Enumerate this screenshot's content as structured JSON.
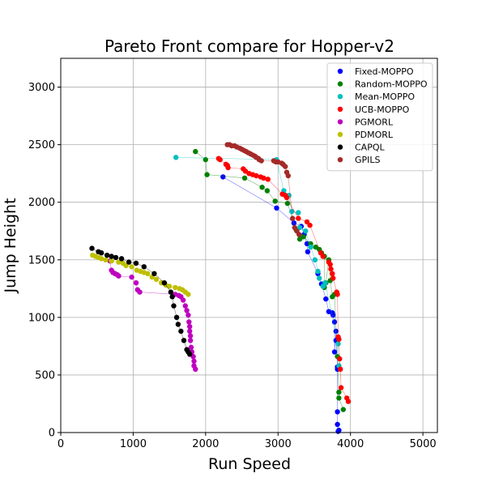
{
  "chart_data": {
    "type": "scatter",
    "title": "Pareto Front compare for Hopper-v2",
    "xlabel": "Run Speed",
    "ylabel": "Jump Height",
    "xlim": [
      0,
      5200
    ],
    "ylim": [
      0,
      3250
    ],
    "xticks": [
      0,
      1000,
      2000,
      3000,
      4000,
      5000
    ],
    "yticks": [
      0,
      500,
      1000,
      1500,
      2000,
      2500,
      3000
    ],
    "grid": true,
    "legend_position": "top-right",
    "series": [
      {
        "name": "Fixed-MOPPO",
        "color": "#0000ff",
        "points": [
          [
            2240,
            2220
          ],
          [
            2980,
            1950
          ],
          [
            3220,
            1820
          ],
          [
            3320,
            1790
          ],
          [
            3360,
            1720
          ],
          [
            3400,
            1640
          ],
          [
            3410,
            1570
          ],
          [
            3550,
            1380
          ],
          [
            3600,
            1290
          ],
          [
            3660,
            1160
          ],
          [
            3700,
            1050
          ],
          [
            3750,
            1040
          ],
          [
            3760,
            1020
          ],
          [
            3780,
            960
          ],
          [
            3800,
            880
          ],
          [
            3800,
            800
          ],
          [
            3780,
            700
          ],
          [
            3820,
            570
          ],
          [
            3820,
            550
          ],
          [
            3820,
            180
          ],
          [
            3820,
            70
          ],
          [
            3840,
            20
          ],
          [
            3830,
            10
          ]
        ]
      },
      {
        "name": "Random-MOPPO",
        "color": "#008000",
        "points": [
          [
            1860,
            2440
          ],
          [
            2000,
            2370
          ],
          [
            2020,
            2240
          ],
          [
            2540,
            2210
          ],
          [
            2780,
            2130
          ],
          [
            2850,
            2100
          ],
          [
            2960,
            2010
          ],
          [
            3130,
            1990
          ],
          [
            3250,
            1760
          ],
          [
            3300,
            1680
          ],
          [
            3350,
            1700
          ],
          [
            3450,
            1640
          ],
          [
            3520,
            1610
          ],
          [
            3570,
            1590
          ],
          [
            3600,
            1560
          ],
          [
            3640,
            1530
          ],
          [
            3700,
            1500
          ],
          [
            3720,
            1320
          ],
          [
            3660,
            1300
          ],
          [
            3640,
            1260
          ],
          [
            3780,
            1200
          ],
          [
            3750,
            1180
          ],
          [
            3820,
            660
          ],
          [
            3840,
            350
          ],
          [
            3840,
            300
          ],
          [
            3900,
            200
          ]
        ]
      },
      {
        "name": "Mean-MOPPO",
        "color": "#00bfbf",
        "points": [
          [
            1590,
            2390
          ],
          [
            2980,
            2370
          ],
          [
            3080,
            2100
          ],
          [
            3150,
            2060
          ],
          [
            3190,
            1920
          ],
          [
            3280,
            1910
          ],
          [
            3300,
            1780
          ],
          [
            3380,
            1750
          ],
          [
            3450,
            1610
          ],
          [
            3510,
            1500
          ],
          [
            3550,
            1400
          ],
          [
            3570,
            1340
          ],
          [
            3620,
            1270
          ],
          [
            3650,
            1300
          ],
          [
            3830,
            770
          ],
          [
            3840,
            580
          ]
        ]
      },
      {
        "name": "UCB-MOPPO",
        "color": "#ff0000",
        "points": [
          [
            2180,
            2380
          ],
          [
            2200,
            2370
          ],
          [
            2280,
            2330
          ],
          [
            2300,
            2320
          ],
          [
            2310,
            2300
          ],
          [
            2520,
            2290
          ],
          [
            2550,
            2270
          ],
          [
            2600,
            2250
          ],
          [
            2650,
            2240
          ],
          [
            2700,
            2230
          ],
          [
            2760,
            2220
          ],
          [
            2800,
            2210
          ],
          [
            2860,
            2200
          ],
          [
            3060,
            2070
          ],
          [
            3100,
            2060
          ],
          [
            3120,
            2040
          ],
          [
            3280,
            1860
          ],
          [
            3400,
            1830
          ],
          [
            3440,
            1800
          ],
          [
            3590,
            1560
          ],
          [
            3620,
            1530
          ],
          [
            3700,
            1480
          ],
          [
            3720,
            1460
          ],
          [
            3730,
            1420
          ],
          [
            3750,
            1380
          ],
          [
            3760,
            1340
          ],
          [
            3810,
            1220
          ],
          [
            3820,
            1200
          ],
          [
            3830,
            830
          ],
          [
            3840,
            810
          ],
          [
            3850,
            640
          ],
          [
            3860,
            550
          ],
          [
            3870,
            390
          ],
          [
            3950,
            300
          ],
          [
            3970,
            270
          ]
        ]
      },
      {
        "name": "PGMORL",
        "color": "#bf00bf",
        "points": [
          [
            680,
            1490
          ],
          [
            700,
            1410
          ],
          [
            720,
            1390
          ],
          [
            750,
            1380
          ],
          [
            780,
            1370
          ],
          [
            800,
            1360
          ],
          [
            980,
            1350
          ],
          [
            1040,
            1300
          ],
          [
            1060,
            1240
          ],
          [
            1090,
            1220
          ],
          [
            1580,
            1200
          ],
          [
            1630,
            1190
          ],
          [
            1660,
            1180
          ],
          [
            1690,
            1150
          ],
          [
            1720,
            1100
          ],
          [
            1740,
            1060
          ],
          [
            1760,
            1020
          ],
          [
            1770,
            960
          ],
          [
            1780,
            920
          ],
          [
            1780,
            880
          ],
          [
            1790,
            840
          ],
          [
            1790,
            800
          ],
          [
            1800,
            740
          ],
          [
            1810,
            700
          ],
          [
            1830,
            660
          ],
          [
            1840,
            620
          ],
          [
            1840,
            580
          ],
          [
            1860,
            550
          ]
        ]
      },
      {
        "name": "PDMORL",
        "color": "#bfbf00",
        "points": [
          [
            440,
            1540
          ],
          [
            480,
            1530
          ],
          [
            520,
            1520
          ],
          [
            560,
            1510
          ],
          [
            620,
            1500
          ],
          [
            700,
            1490
          ],
          [
            800,
            1480
          ],
          [
            860,
            1470
          ],
          [
            900,
            1450
          ],
          [
            980,
            1440
          ],
          [
            1050,
            1410
          ],
          [
            1100,
            1400
          ],
          [
            1150,
            1390
          ],
          [
            1200,
            1380
          ],
          [
            1260,
            1350
          ],
          [
            1320,
            1330
          ],
          [
            1390,
            1300
          ],
          [
            1450,
            1280
          ],
          [
            1500,
            1270
          ],
          [
            1580,
            1260
          ],
          [
            1640,
            1250
          ],
          [
            1680,
            1240
          ],
          [
            1720,
            1220
          ],
          [
            1760,
            1200
          ]
        ]
      },
      {
        "name": "CAPQL",
        "color": "#000000",
        "points": [
          [
            430,
            1600
          ],
          [
            520,
            1570
          ],
          [
            560,
            1560
          ],
          [
            640,
            1540
          ],
          [
            700,
            1530
          ],
          [
            760,
            1520
          ],
          [
            840,
            1510
          ],
          [
            940,
            1480
          ],
          [
            1040,
            1470
          ],
          [
            1150,
            1440
          ],
          [
            1290,
            1380
          ],
          [
            1430,
            1300
          ],
          [
            1520,
            1220
          ],
          [
            1540,
            1180
          ],
          [
            1560,
            1100
          ],
          [
            1600,
            1000
          ],
          [
            1620,
            940
          ],
          [
            1660,
            880
          ],
          [
            1700,
            800
          ],
          [
            1740,
            720
          ],
          [
            1760,
            700
          ],
          [
            1780,
            680
          ]
        ]
      },
      {
        "name": "GPILS",
        "color": "#a52a2a",
        "points": [
          [
            2300,
            2500
          ],
          [
            2330,
            2500
          ],
          [
            2360,
            2490
          ],
          [
            2400,
            2490
          ],
          [
            2430,
            2480
          ],
          [
            2470,
            2470
          ],
          [
            2500,
            2460
          ],
          [
            2530,
            2450
          ],
          [
            2560,
            2440
          ],
          [
            2590,
            2430
          ],
          [
            2620,
            2420
          ],
          [
            2650,
            2410
          ],
          [
            2680,
            2400
          ],
          [
            2700,
            2390
          ],
          [
            2730,
            2380
          ],
          [
            2740,
            2370
          ],
          [
            2770,
            2360
          ],
          [
            2940,
            2360
          ],
          [
            2970,
            2350
          ],
          [
            3000,
            2350
          ],
          [
            3050,
            2340
          ],
          [
            3070,
            2330
          ],
          [
            3100,
            2310
          ],
          [
            3120,
            2260
          ],
          [
            3140,
            2230
          ],
          [
            3200,
            1860
          ],
          [
            3230,
            1780
          ],
          [
            3260,
            1750
          ],
          [
            3290,
            1720
          ]
        ]
      }
    ]
  }
}
